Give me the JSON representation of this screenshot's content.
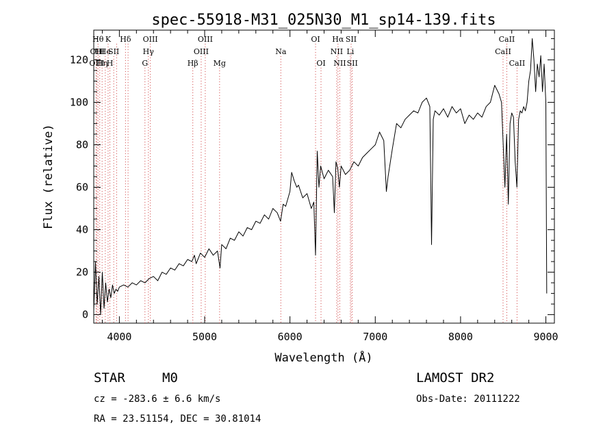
{
  "chart_data": {
    "type": "line",
    "title": "spec-55918-M31_025N30_M1_sp14-139.fits",
    "xlabel": "Wavelength (Å)",
    "ylabel": "Flux (relative)",
    "xlim": [
      3700,
      9100
    ],
    "ylim": [
      -4,
      134
    ],
    "xticks": [
      4000,
      5000,
      6000,
      7000,
      8000,
      9000
    ],
    "yticks": [
      0,
      20,
      40,
      60,
      80,
      100,
      120
    ],
    "grid": false,
    "line_color": "#000000",
    "marker_color": "#d04040",
    "series": [
      {
        "values_note": "",
        "x": [
          3700,
          3720,
          3740,
          3760,
          3780,
          3800,
          3820,
          3840,
          3860,
          3880,
          3900,
          3920,
          3940,
          3960,
          3980,
          4000,
          4050,
          4100,
          4150,
          4200,
          4250,
          4300,
          4350,
          4400,
          4450,
          4500,
          4550,
          4600,
          4650,
          4700,
          4750,
          4800,
          4850,
          4880,
          4900,
          4950,
          5000,
          5050,
          5100,
          5150,
          5180,
          5200,
          5250,
          5300,
          5350,
          5400,
          5450,
          5500,
          5550,
          5600,
          5650,
          5700,
          5750,
          5800,
          5850,
          5890,
          5920,
          5950,
          6000,
          6020,
          6050,
          6080,
          6100,
          6150,
          6200,
          6250,
          6280,
          6300,
          6320,
          6340,
          6360,
          6400,
          6450,
          6500,
          6520,
          6540,
          6560,
          6580,
          6600,
          6650,
          6700,
          6750,
          6800,
          6850,
          6900,
          6950,
          7000,
          7050,
          7100,
          7130,
          7150,
          7200,
          7250,
          7300,
          7350,
          7400,
          7450,
          7500,
          7550,
          7600,
          7640,
          7660,
          7680,
          7700,
          7750,
          7800,
          7850,
          7900,
          7950,
          8000,
          8050,
          8100,
          8150,
          8200,
          8250,
          8300,
          8350,
          8400,
          8450,
          8480,
          8500,
          8520,
          8540,
          8560,
          8580,
          8600,
          8620,
          8640,
          8660,
          8680,
          8700,
          8720,
          8740,
          8760,
          8780,
          8800,
          8820,
          8840,
          8860,
          8880,
          8900,
          8920,
          8940,
          8960,
          8980,
          9000,
          9010
        ],
        "y": [
          2,
          25,
          5,
          18,
          0,
          20,
          3,
          15,
          6,
          12,
          8,
          14,
          10,
          12,
          11,
          13,
          14,
          13,
          15,
          14,
          16,
          15,
          17,
          18,
          16,
          20,
          19,
          22,
          21,
          24,
          23,
          26,
          25,
          28,
          24,
          29,
          27,
          31,
          28,
          30,
          22,
          33,
          31,
          36,
          35,
          39,
          37,
          41,
          40,
          44,
          43,
          47,
          45,
          50,
          48,
          44,
          52,
          51,
          58,
          67,
          63,
          60,
          61,
          55,
          57,
          50,
          53,
          28,
          77,
          60,
          70,
          64,
          68,
          65,
          48,
          72,
          69,
          60,
          70,
          66,
          68,
          72,
          70,
          74,
          76,
          78,
          80,
          86,
          82,
          58,
          65,
          78,
          90,
          88,
          92,
          94,
          96,
          95,
          100,
          102,
          98,
          33,
          92,
          96,
          94,
          97,
          93,
          98,
          95,
          97,
          90,
          94,
          92,
          95,
          93,
          98,
          100,
          108,
          104,
          100,
          80,
          60,
          85,
          52,
          90,
          95,
          93,
          72,
          60,
          92,
          96,
          95,
          98,
          96,
          100,
          110,
          115,
          130,
          120,
          105,
          118,
          112,
          122,
          105,
          118,
          100,
          10
        ]
      }
    ],
    "line_markers": [
      {
        "x": 3727,
        "label": "OII",
        "row": 1
      },
      {
        "x": 3735,
        "label": "OIII",
        "row": 2
      },
      {
        "x": 3750,
        "label": "Hθ",
        "row": 0
      },
      {
        "x": 3770,
        "label": "HI",
        "row": 1
      },
      {
        "x": 3798,
        "label": "Hη",
        "row": 2
      },
      {
        "x": 3835,
        "label": "He",
        "row": 1
      },
      {
        "x": 3868,
        "label": "K",
        "row": 0
      },
      {
        "x": 3889,
        "label": "H",
        "row": 2
      },
      {
        "x": 3934,
        "label": "SII",
        "row": 1
      },
      {
        "x": 3968,
        "label": "",
        "row": 0
      },
      {
        "x": 4072,
        "label": "Hδ",
        "row": 0
      },
      {
        "x": 4102,
        "label": "",
        "row": 0
      },
      {
        "x": 4300,
        "label": "G",
        "row": 2
      },
      {
        "x": 4340,
        "label": "Hγ",
        "row": 1
      },
      {
        "x": 4363,
        "label": "OIII",
        "row": 0
      },
      {
        "x": 4861,
        "label": "Hβ",
        "row": 2
      },
      {
        "x": 4959,
        "label": "OIII",
        "row": 1
      },
      {
        "x": 5007,
        "label": "OIII",
        "row": 0
      },
      {
        "x": 5175,
        "label": "Mg",
        "row": 2
      },
      {
        "x": 5893,
        "label": "Na",
        "row": 1
      },
      {
        "x": 6300,
        "label": "OI",
        "row": 0
      },
      {
        "x": 6364,
        "label": "OI",
        "row": 2
      },
      {
        "x": 6548,
        "label": "NII",
        "row": 1
      },
      {
        "x": 6563,
        "label": "Hα",
        "row": 0
      },
      {
        "x": 6584,
        "label": "NII",
        "row": 2
      },
      {
        "x": 6708,
        "label": "Li",
        "row": 1
      },
      {
        "x": 6717,
        "label": "SII",
        "row": 0
      },
      {
        "x": 6731,
        "label": "SII",
        "row": 2
      },
      {
        "x": 8498,
        "label": "CaII",
        "row": 1
      },
      {
        "x": 8542,
        "label": "CaII",
        "row": 0
      },
      {
        "x": 8662,
        "label": "CaII",
        "row": 2
      }
    ]
  },
  "info": {
    "object_class": "STAR",
    "subclass": "M0",
    "survey": "LAMOST DR2",
    "cz": "cz = -283.6 ± 6.6 km/s",
    "obs_date": "Obs-Date: 20111222",
    "coords": "RA =  23.51154, DEC =  30.81014"
  }
}
